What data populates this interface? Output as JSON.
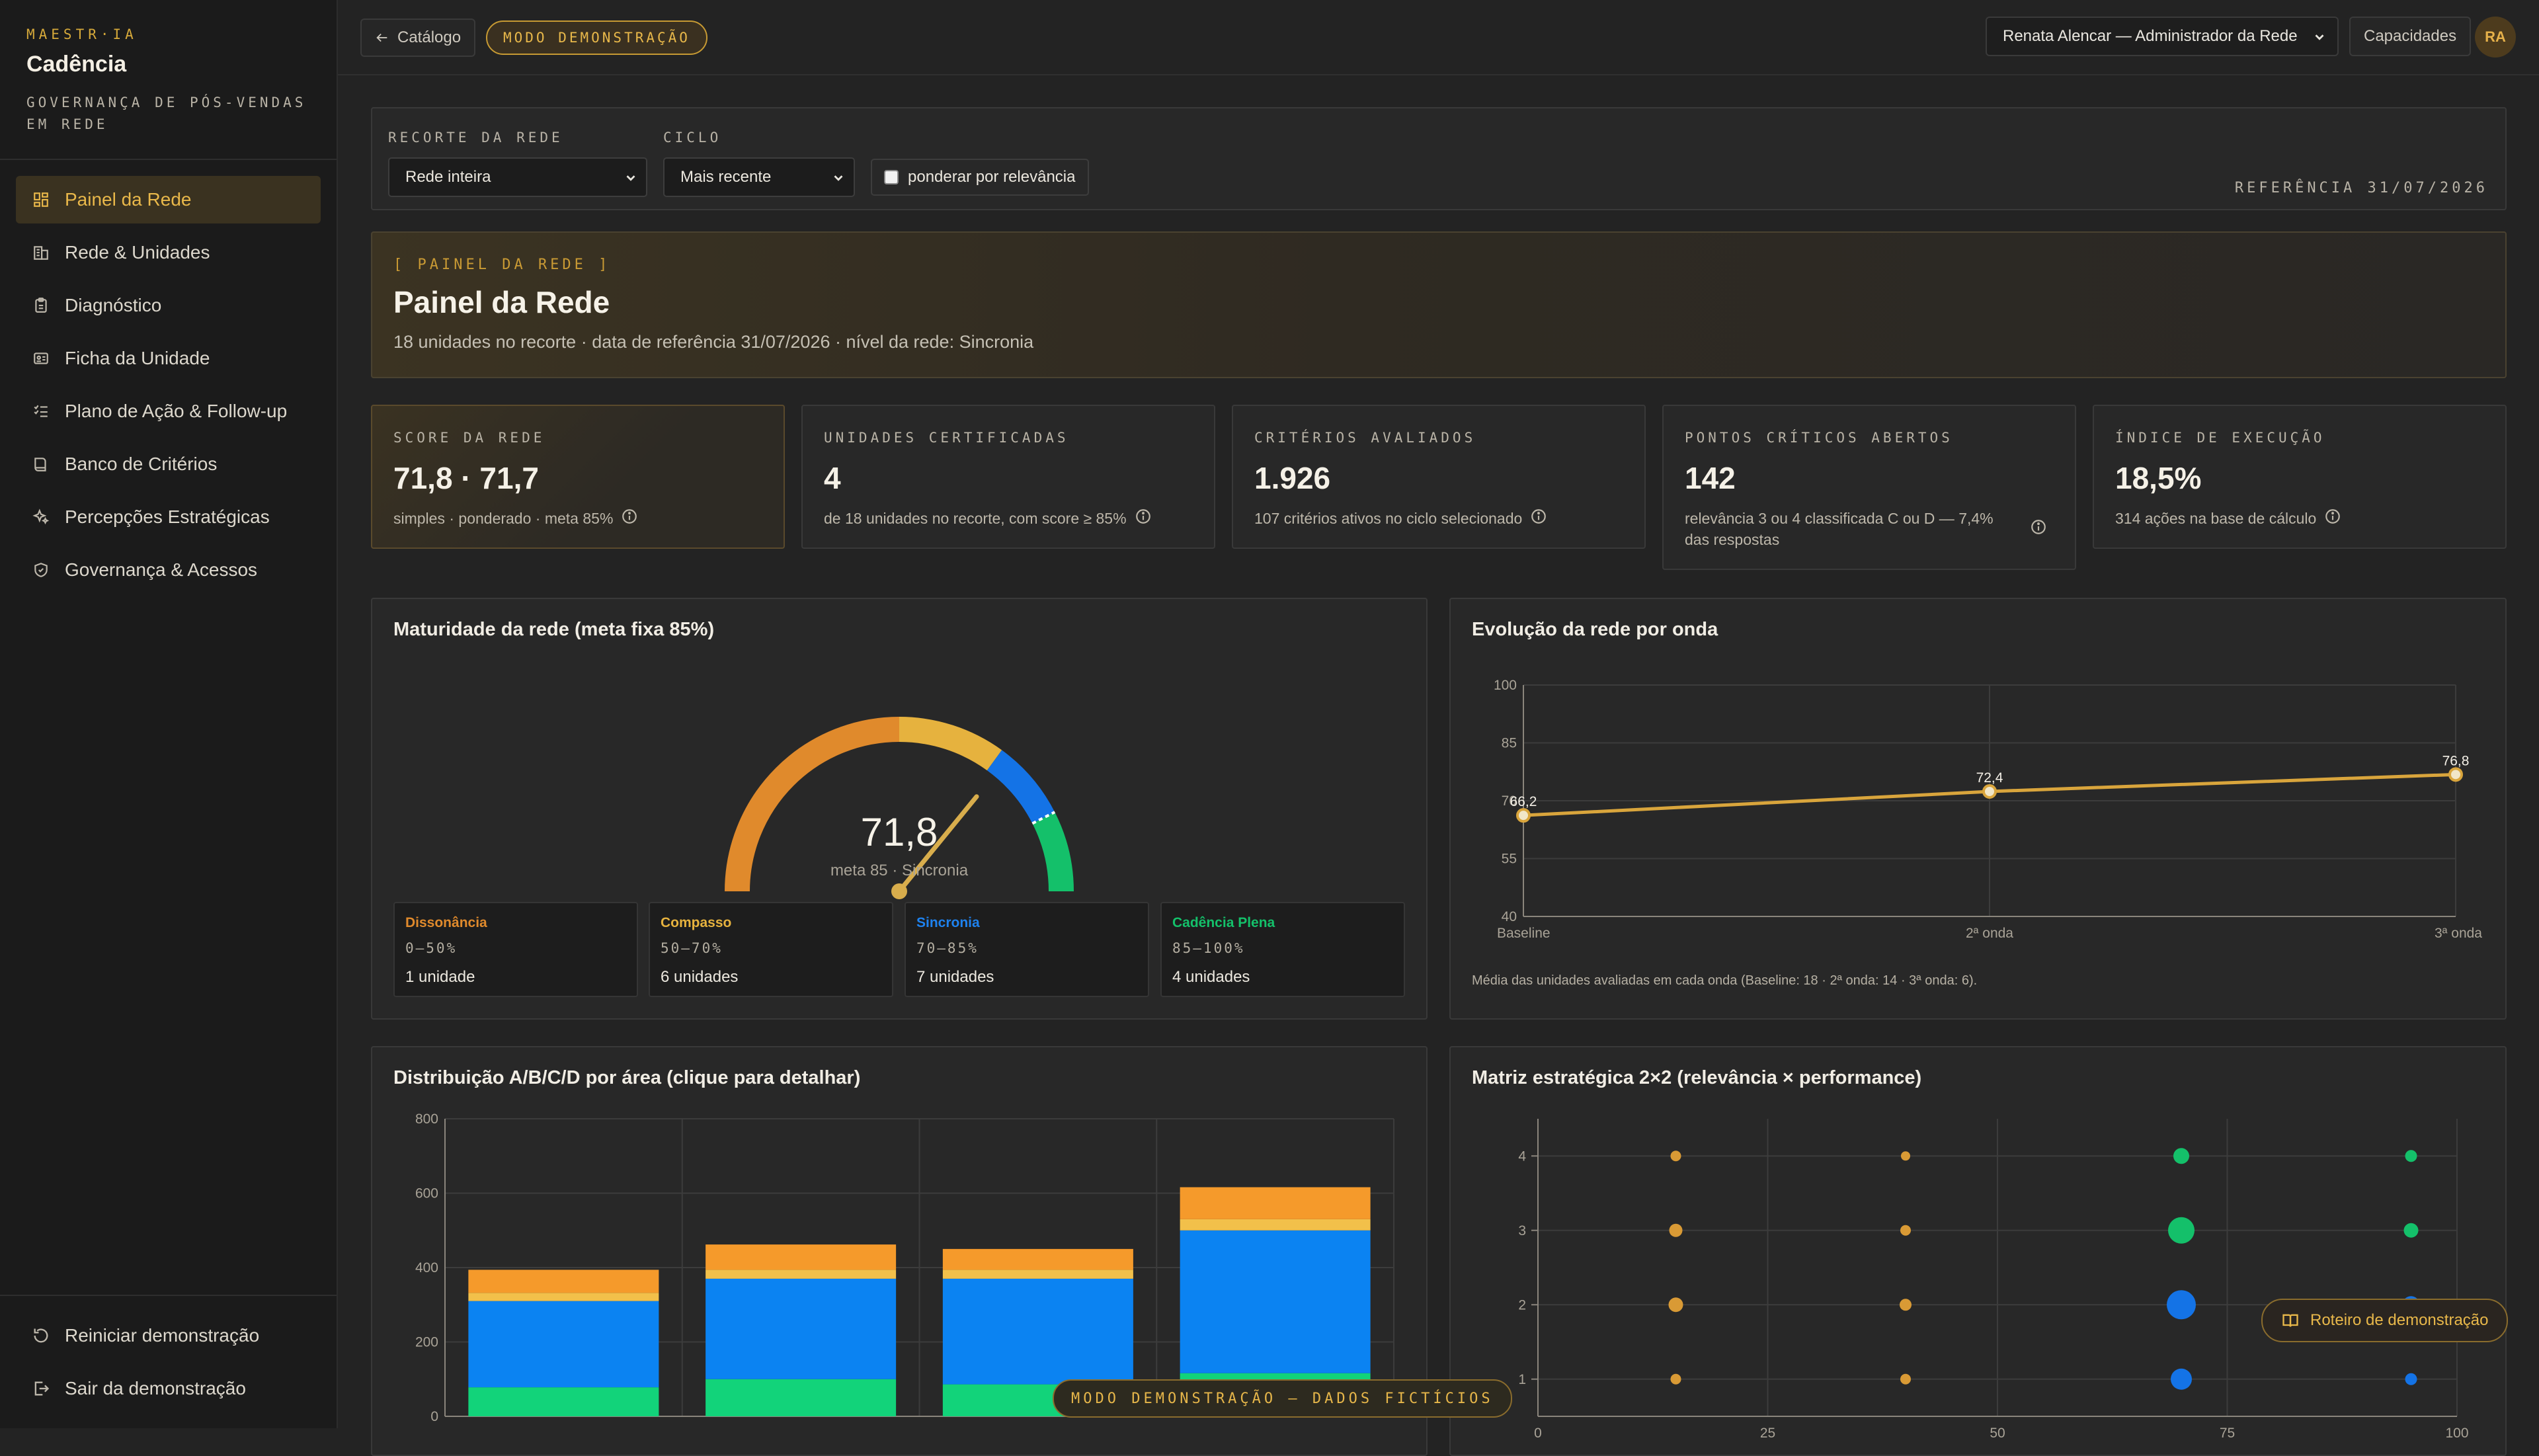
{
  "app": {
    "eyebrow": "MAESTR·IA",
    "name": "Cadência",
    "tagline": "GOVERNANÇA DE PÓS-VENDAS EM REDE"
  },
  "nav": [
    {
      "label": "Painel da Rede",
      "icon": "dashboard-icon",
      "active": true
    },
    {
      "label": "Rede & Unidades",
      "icon": "buildings-icon"
    },
    {
      "label": "Diagnóstico",
      "icon": "clipboard-icon"
    },
    {
      "label": "Ficha da Unidade",
      "icon": "id-card-icon"
    },
    {
      "label": "Plano de Ação & Follow-up",
      "icon": "checklist-icon"
    },
    {
      "label": "Banco de Critérios",
      "icon": "book-icon"
    },
    {
      "label": "Percepções Estratégicas",
      "icon": "sparkles-icon"
    },
    {
      "label": "Governança & Acessos",
      "icon": "shield-icon"
    }
  ],
  "sidebar_bottom": {
    "restart": "Reiniciar demonstração",
    "exit": "Sair da demonstração"
  },
  "topbar": {
    "back": "Catálogo",
    "demo_mode": "MODO DEMONSTRAÇÃO",
    "user": "Renata Alencar — Administrador da Rede",
    "capabilities": "Capacidades",
    "avatar": "RA"
  },
  "filters": {
    "scope_label": "RECORTE DA REDE",
    "scope_value": "Rede inteira",
    "cycle_label": "CICLO",
    "cycle_value": "Mais recente",
    "weight_label": "ponderar por relevância",
    "weight_checked": false,
    "reference": "REFERÊNCIA 31/07/2026"
  },
  "hero": {
    "eyebrow": "[ PAINEL DA REDE ]",
    "title": "Painel da Rede",
    "subtitle": "18 unidades no recorte · data de referência 31/07/2026 · nível da rede: Sincronia"
  },
  "kpis": [
    {
      "label": "SCORE DA REDE",
      "value": "71,8 · 71,7",
      "desc": "simples · ponderado · meta 85%"
    },
    {
      "label": "UNIDADES CERTIFICADAS",
      "value": "4",
      "desc": "de 18 unidades no recorte, com score ≥ 85%"
    },
    {
      "label": "CRITÉRIOS AVALIADOS",
      "value": "1.926",
      "desc": "107 critérios ativos no ciclo selecionado"
    },
    {
      "label": "PONTOS CRÍTICOS ABERTOS",
      "value": "142",
      "desc": "relevância 3 ou 4 classificada C ou D — 7,4% das respostas"
    },
    {
      "label": "ÍNDICE DE EXECUÇÃO",
      "value": "18,5%",
      "desc": "314 ações na base de cálculo"
    }
  ],
  "gauge": {
    "title": "Maturidade da rede (meta fixa 85%)",
    "value": 71.8,
    "value_label": "71,8",
    "target": 85,
    "caption": "meta 85 · Sincronia",
    "bands": [
      {
        "name": "Dissonância",
        "range": "0–50%",
        "count": "1 unidade",
        "color": "#e08a2c",
        "from": 0,
        "to": 50
      },
      {
        "name": "Compasso",
        "range": "50–70%",
        "count": "6 unidades",
        "color": "#e6b23e",
        "from": 50,
        "to": 70
      },
      {
        "name": "Sincronia",
        "range": "70–85%",
        "count": "7 unidades",
        "color": "#1473e6",
        "from": 70,
        "to": 85
      },
      {
        "name": "Cadência Plena",
        "range": "85–100%",
        "count": "4 unidades",
        "color": "#14c06a",
        "from": 85,
        "to": 100
      }
    ]
  },
  "line": {
    "title": "Evolução da rede por onda",
    "note": "Média das unidades avaliadas em cada onda (Baseline: 18 · 2ª onda: 14 · 3ª onda: 6).",
    "color": "#d9a53c"
  },
  "bars": {
    "title": "Distribuição A/B/C/D por área (clique para detalhar)"
  },
  "scatter": {
    "title": "Matriz estratégica 2×2 (relevância × performance)"
  },
  "floating": {
    "guide": "Roteiro de demonstração",
    "ribbon": "MODO DEMONSTRAÇÃO — DADOS FICTÍCIOS"
  },
  "chart_data": [
    {
      "type": "line",
      "x": [
        "Baseline",
        "2ª onda",
        "3ª onda"
      ],
      "series": [
        {
          "values": [
            66.2,
            72.4,
            76.8
          ],
          "labels": [
            "66,2",
            "72,4",
            "76,8"
          ]
        }
      ],
      "ylim": [
        40,
        100
      ],
      "yticks": [
        40,
        55,
        70,
        85,
        100
      ],
      "grid": true
    },
    {
      "type": "bar",
      "stacked": true,
      "categories": [
        "",
        "",
        "",
        ""
      ],
      "series": [
        {
          "values": [
            78,
            100,
            86,
            116
          ],
          "color": "#12d37a"
        },
        {
          "values": [
            232,
            270,
            284,
            384
          ],
          "color": "#0b83f2"
        },
        {
          "values": [
            22,
            24,
            24,
            30
          ],
          "color": "#f2c04a"
        },
        {
          "values": [
            62,
            68,
            56,
            86
          ],
          "color": "#f59a2b"
        }
      ],
      "ylim": [
        0,
        800
      ],
      "yticks": [
        0,
        200,
        400,
        600,
        800
      ],
      "grid": true
    },
    {
      "type": "scatter",
      "xlim": [
        0,
        100
      ],
      "xticks": [
        0,
        25,
        50,
        75,
        100
      ],
      "ylim": [
        0.5,
        4.5
      ],
      "yticks": [
        1,
        2,
        3,
        4
      ],
      "points": [
        {
          "x": 15,
          "y": 4,
          "r": 8,
          "c": "#d99a35"
        },
        {
          "x": 40,
          "y": 4,
          "r": 7,
          "c": "#d99a35"
        },
        {
          "x": 70,
          "y": 4,
          "r": 12,
          "c": "#14c06a"
        },
        {
          "x": 95,
          "y": 4,
          "r": 9,
          "c": "#14c06a"
        },
        {
          "x": 15,
          "y": 3,
          "r": 10,
          "c": "#d99a35"
        },
        {
          "x": 40,
          "y": 3,
          "r": 8,
          "c": "#d99a35"
        },
        {
          "x": 70,
          "y": 3,
          "r": 20,
          "c": "#14c06a"
        },
        {
          "x": 95,
          "y": 3,
          "r": 11,
          "c": "#14c06a"
        },
        {
          "x": 15,
          "y": 2,
          "r": 11,
          "c": "#d99a35"
        },
        {
          "x": 40,
          "y": 2,
          "r": 9,
          "c": "#d99a35"
        },
        {
          "x": 70,
          "y": 2,
          "r": 22,
          "c": "#1473e6"
        },
        {
          "x": 95,
          "y": 2,
          "r": 13,
          "c": "#1473e6"
        },
        {
          "x": 15,
          "y": 1,
          "r": 8,
          "c": "#d99a35"
        },
        {
          "x": 40,
          "y": 1,
          "r": 8,
          "c": "#d99a35"
        },
        {
          "x": 70,
          "y": 1,
          "r": 16,
          "c": "#1473e6"
        },
        {
          "x": 95,
          "y": 1,
          "r": 9,
          "c": "#1473e6"
        }
      ]
    }
  ]
}
